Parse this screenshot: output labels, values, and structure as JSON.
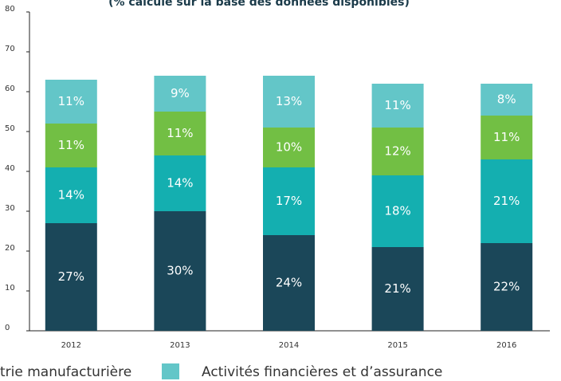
{
  "chart_data": {
    "type": "stacked_bar",
    "title": "(% calculé sur la base des données disponibles)",
    "categories": [
      "2012",
      "2013",
      "2014",
      "2015",
      "2016"
    ],
    "series": [
      {
        "color": "#1b4759",
        "values": [
          27,
          30,
          24,
          21,
          22
        ],
        "value_labels": [
          "27%",
          "30%",
          "24%",
          "21%",
          "22%"
        ]
      },
      {
        "color": "#14afb0",
        "values": [
          14,
          14,
          17,
          18,
          21
        ],
        "value_labels": [
          "14%",
          "14%",
          "17%",
          "18%",
          "21%"
        ]
      },
      {
        "name": "trie manufacturière",
        "color": "#72bf44",
        "values": [
          11,
          11,
          10,
          12,
          11
        ],
        "value_labels": [
          "11%",
          "11%",
          "10%",
          "12%",
          "11%"
        ]
      },
      {
        "name": "Activités financières et d’assurance",
        "color": "#63c6c8",
        "values": [
          11,
          9,
          13,
          11,
          8
        ],
        "value_labels": [
          "11%",
          "9%",
          "13%",
          "11%",
          "8%"
        ]
      }
    ],
    "ylim": [
      0,
      80
    ],
    "yticks": [
      0,
      10,
      20,
      30,
      40,
      50,
      60,
      70,
      80
    ]
  }
}
